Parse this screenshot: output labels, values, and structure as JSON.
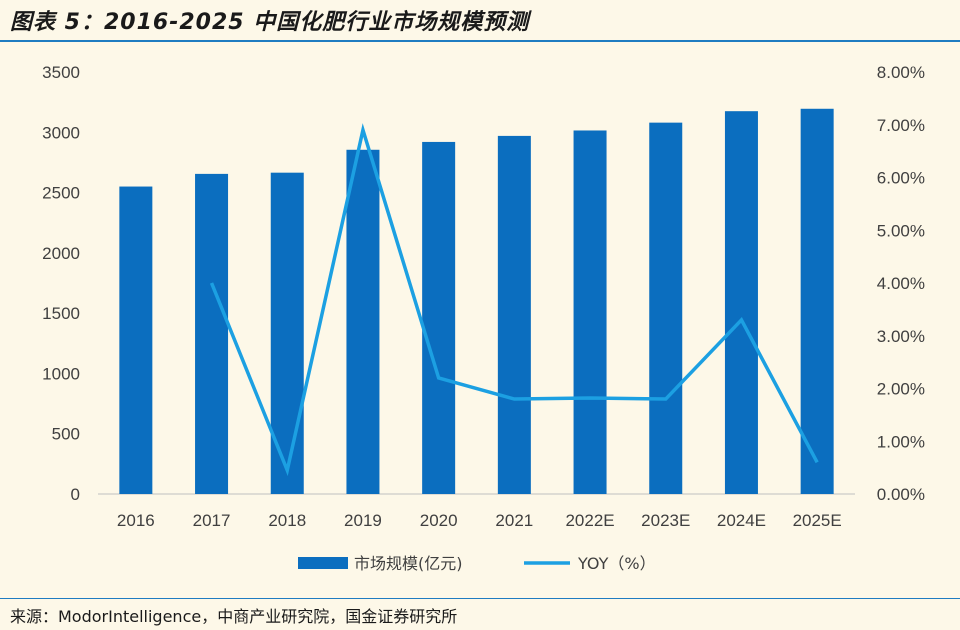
{
  "title": "图表 5：2016-2025 中国化肥行业市场规模预测",
  "source": "来源：ModorIntelligence，中商产业研究院，国金证券研究所",
  "colors": {
    "bar": "#0b6ebf",
    "line": "#1ca0e2",
    "rule": "#1f7cc1",
    "background": "#fdf8e8"
  },
  "chart_data": {
    "type": "bar+line",
    "categories": [
      "2016",
      "2017",
      "2018",
      "2019",
      "2020",
      "2021",
      "2022E",
      "2023E",
      "2024E",
      "2025E"
    ],
    "series": [
      {
        "name": "市场规模(亿元)",
        "type": "bar",
        "axis": "left",
        "values": [
          2550,
          2655,
          2665,
          2855,
          2920,
          2970,
          3015,
          3080,
          3175,
          3195
        ]
      },
      {
        "name": "YOY（%）",
        "type": "line",
        "axis": "right",
        "values": [
          null,
          4.0,
          0.45,
          6.9,
          2.2,
          1.8,
          1.82,
          1.8,
          3.3,
          0.6
        ]
      }
    ],
    "y_left": {
      "min": 0,
      "max": 3500,
      "ticks": [
        "0",
        "500",
        "1000",
        "1500",
        "2000",
        "2500",
        "3000",
        "3500"
      ]
    },
    "y_right": {
      "min": 0,
      "max": 8,
      "ticks": [
        "0.00%",
        "1.00%",
        "2.00%",
        "3.00%",
        "4.00%",
        "5.00%",
        "6.00%",
        "7.00%",
        "8.00%"
      ]
    },
    "legend": [
      "市场规模(亿元)",
      "YOY（%）"
    ],
    "legend_position": "bottom"
  }
}
